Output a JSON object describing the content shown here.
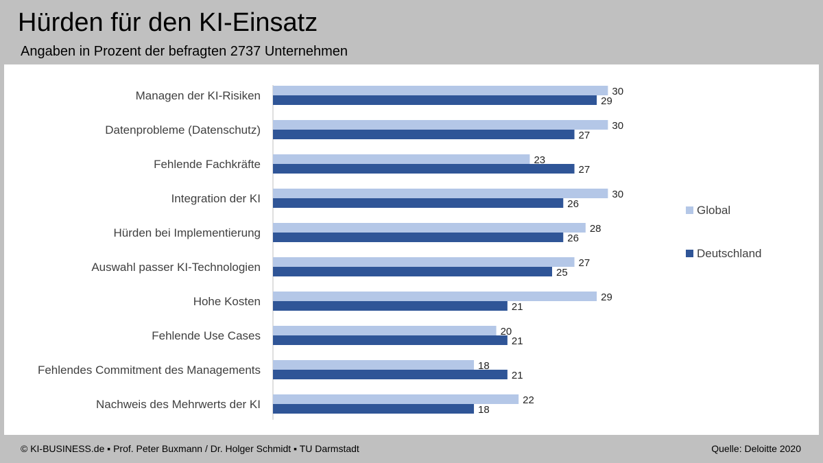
{
  "header": {
    "title": "Hürden für den KI-Einsatz",
    "subtitle": "Angaben in Prozent der befragten 2737 Unternehmen"
  },
  "footer": {
    "credit": "© KI-BUSINESS.de ▪ Prof. Peter Buxmann / Dr. Holger Schmidt ▪ TU Darmstadt",
    "source": "Quelle: Deloitte 2020"
  },
  "colors": {
    "global": "#b4c7e7",
    "deutschland": "#2f5597",
    "axis": "#bfbfbf"
  },
  "chart_data": {
    "type": "bar",
    "orientation": "horizontal",
    "title": "Hürden für den KI-Einsatz",
    "subtitle": "Angaben in Prozent der befragten 2737 Unternehmen",
    "categories": [
      "Managen der KI-Risiken",
      "Datenprobleme (Datenschutz)",
      "Fehlende Fachkräfte",
      "Integration der KI",
      "Hürden bei Implementierung",
      "Auswahl passer KI-Technologien",
      "Hohe Kosten",
      "Fehlende Use Cases",
      "Fehlendes Commitment des Managements",
      "Nachweis des Mehrwerts der KI"
    ],
    "series": [
      {
        "name": "Global",
        "values": [
          30,
          30,
          23,
          30,
          28,
          27,
          29,
          20,
          18,
          22
        ]
      },
      {
        "name": "Deutschland",
        "values": [
          29,
          27,
          27,
          26,
          26,
          25,
          21,
          21,
          21,
          18
        ]
      }
    ],
    "xlim": [
      0,
      30
    ],
    "grid": false,
    "data_labels": true,
    "legend_position": "right"
  }
}
